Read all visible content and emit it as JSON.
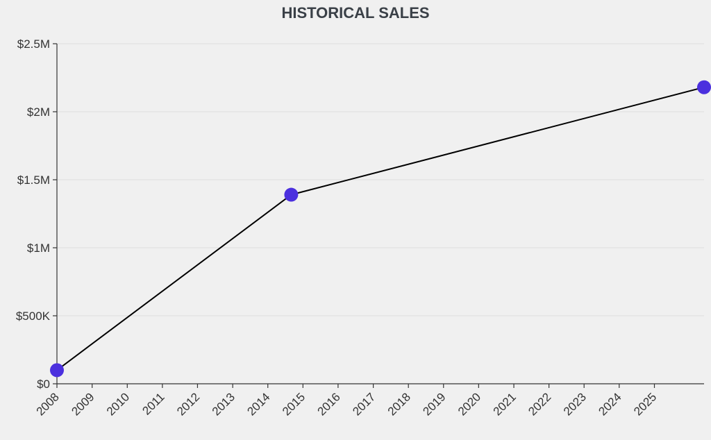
{
  "chart_data": {
    "type": "line",
    "title": "HISTORICAL SALES",
    "xlabel": "",
    "ylabel": "",
    "x_ticks": [
      "2008",
      "2009",
      "2010",
      "2011",
      "2012",
      "2013",
      "2014",
      "2015",
      "2016",
      "2017",
      "2018",
      "2019",
      "2020",
      "2021",
      "2022",
      "2023",
      "2024",
      "2025"
    ],
    "y_ticks": [
      {
        "value": 0,
        "label": "$0"
      },
      {
        "value": 500000,
        "label": "$500K"
      },
      {
        "value": 1000000,
        "label": "$1M"
      },
      {
        "value": 1500000,
        "label": "$1.5M"
      },
      {
        "value": 2000000,
        "label": "$2M"
      },
      {
        "value": 2500000,
        "label": "$2.5M"
      }
    ],
    "xlim": [
      "2008-01-01",
      "2026-06-01"
    ],
    "ylim": [
      0,
      2500000
    ],
    "grid": true,
    "series": [
      {
        "points": [
          {
            "x": "2008-01-01",
            "y": 100000
          },
          {
            "x": "2014-09-01",
            "y": 1390000
          },
          {
            "x": "2026-06-01",
            "y": 2180000
          }
        ]
      }
    ],
    "colors": {
      "point": "#4b30de",
      "line": "#000000",
      "title": "#3a4047",
      "background": "#f0f0f0"
    }
  }
}
